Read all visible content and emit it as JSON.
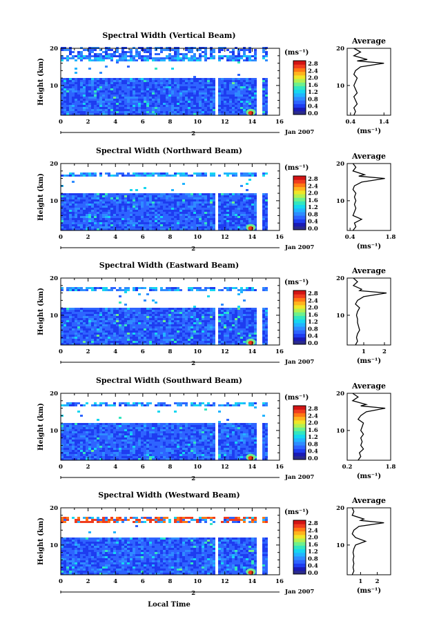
{
  "figure": {
    "x_axis_label": "Local Time",
    "height_label": "Height (km)",
    "colorbar_unit": "(ms⁻¹)",
    "avg_unit": "(ms⁻¹)",
    "avg_title": "Average",
    "date_label": "Jan 2007",
    "day_marker": "2",
    "colorscale": [
      "#2b2b8c",
      "#1a1ab4",
      "#1e3cf0",
      "#2e64ff",
      "#2f8cff",
      "#22b4ff",
      "#16d7f0",
      "#33e6c0",
      "#6ef08c",
      "#b4f050",
      "#f0e628",
      "#ffb41e",
      "#ff7814",
      "#f03c1e",
      "#d21414"
    ]
  },
  "chart_data": [
    {
      "type": "heatmap",
      "title": "Spectral Width (Vertical Beam)",
      "ylabel": "Height (km)",
      "xlim": [
        0,
        16
      ],
      "ylim": [
        2,
        20
      ],
      "x_ticks": [
        "0",
        "2",
        "4",
        "6",
        "8",
        "10",
        "12",
        "14",
        "16"
      ],
      "y_ticks": [
        "10",
        "20"
      ],
      "colorbar_ticks": [
        "0.0",
        "0.4",
        "0.8",
        "1.2",
        "1.6",
        "2.0",
        "2.4",
        "2.8"
      ],
      "colorbar_range": [
        0,
        2.8
      ],
      "average": {
        "title": "Average",
        "xlim": [
          0.3,
          1.6
        ],
        "x_ticks": [
          "0.4",
          "1.4"
        ],
        "y_ticks": [
          "10",
          "20"
        ],
        "profile": [
          [
            0.5,
            2
          ],
          [
            0.55,
            3
          ],
          [
            0.5,
            4
          ],
          [
            0.6,
            5
          ],
          [
            0.55,
            6
          ],
          [
            0.5,
            7
          ],
          [
            0.6,
            8
          ],
          [
            0.55,
            9
          ],
          [
            0.5,
            10
          ],
          [
            0.55,
            11
          ],
          [
            0.6,
            12
          ],
          [
            0.5,
            13
          ],
          [
            0.55,
            14
          ],
          [
            0.7,
            15
          ],
          [
            1.4,
            16
          ],
          [
            0.6,
            16.6
          ],
          [
            0.9,
            17
          ],
          [
            0.5,
            18
          ],
          [
            0.7,
            19
          ],
          [
            0.5,
            20
          ]
        ]
      }
    },
    {
      "type": "heatmap",
      "title": "Spectral Width (Northward Beam)",
      "ylabel": "Height (km)",
      "xlim": [
        0,
        16
      ],
      "ylim": [
        2,
        20
      ],
      "x_ticks": [
        "0",
        "2",
        "4",
        "6",
        "8",
        "10",
        "12",
        "14",
        "16"
      ],
      "y_ticks": [
        "10",
        "20"
      ],
      "colorbar_ticks": [
        "0.0",
        "0.4",
        "0.8",
        "1.2",
        "1.6",
        "2.0",
        "2.4",
        "2.8"
      ],
      "colorbar_range": [
        0,
        2.8
      ],
      "average": {
        "title": "Average",
        "xlim": [
          0.3,
          1.8
        ],
        "x_ticks": [
          "0.4",
          "1.8"
        ],
        "y_ticks": [
          "10",
          "20"
        ],
        "profile": [
          [
            0.5,
            2
          ],
          [
            0.6,
            3
          ],
          [
            0.55,
            4
          ],
          [
            0.8,
            5
          ],
          [
            0.5,
            6
          ],
          [
            0.55,
            7
          ],
          [
            0.6,
            8
          ],
          [
            0.55,
            9
          ],
          [
            0.6,
            10
          ],
          [
            0.55,
            11
          ],
          [
            0.6,
            12
          ],
          [
            0.5,
            13
          ],
          [
            0.55,
            14
          ],
          [
            0.8,
            15
          ],
          [
            1.6,
            16
          ],
          [
            0.7,
            16.6
          ],
          [
            0.9,
            17
          ],
          [
            0.5,
            18
          ],
          [
            0.6,
            19
          ],
          [
            0.5,
            20
          ]
        ]
      }
    },
    {
      "type": "heatmap",
      "title": "Spectral Width (Eastward Beam)",
      "ylabel": "Height (km)",
      "xlim": [
        0,
        16
      ],
      "ylim": [
        2,
        20
      ],
      "x_ticks": [
        "0",
        "2",
        "4",
        "6",
        "8",
        "10",
        "12",
        "14",
        "16"
      ],
      "y_ticks": [
        "10",
        "20"
      ],
      "colorbar_ticks": [
        "0.0",
        "0.4",
        "0.8",
        "1.2",
        "1.6",
        "2.0",
        "2.4",
        "2.8"
      ],
      "colorbar_range": [
        0,
        2.8
      ],
      "average": {
        "title": "Average",
        "xlim": [
          0.2,
          2.3
        ],
        "x_ticks": [
          "1",
          "2"
        ],
        "y_ticks": [
          "10",
          "20"
        ],
        "profile": [
          [
            0.6,
            2
          ],
          [
            0.7,
            3
          ],
          [
            0.65,
            4
          ],
          [
            0.7,
            5
          ],
          [
            0.8,
            6
          ],
          [
            0.75,
            7
          ],
          [
            0.7,
            8
          ],
          [
            0.7,
            9
          ],
          [
            0.65,
            10
          ],
          [
            0.7,
            11
          ],
          [
            0.8,
            12
          ],
          [
            0.6,
            13
          ],
          [
            0.7,
            14
          ],
          [
            1.0,
            15
          ],
          [
            2.1,
            16
          ],
          [
            0.8,
            16.6
          ],
          [
            0.9,
            17
          ],
          [
            0.5,
            18
          ],
          [
            0.7,
            19
          ],
          [
            0.5,
            20
          ]
        ]
      }
    },
    {
      "type": "heatmap",
      "title": "Spectral Width (Southward Beam)",
      "ylabel": "Height (km)",
      "xlim": [
        0,
        16
      ],
      "ylim": [
        2,
        20
      ],
      "x_ticks": [
        "0",
        "2",
        "4",
        "6",
        "8",
        "10",
        "12",
        "14",
        "16"
      ],
      "y_ticks": [
        "10",
        "20"
      ],
      "colorbar_ticks": [
        "0.0",
        "0.4",
        "0.8",
        "1.2",
        "1.6",
        "2.0",
        "2.4",
        "2.8"
      ],
      "colorbar_range": [
        0,
        2.8
      ],
      "average": {
        "title": "Average",
        "xlim": [
          0.2,
          1.8
        ],
        "x_ticks": [
          "0.2",
          "1.8"
        ],
        "y_ticks": [
          "10",
          "20"
        ],
        "profile": [
          [
            0.6,
            2
          ],
          [
            0.7,
            3
          ],
          [
            0.65,
            4
          ],
          [
            0.8,
            5
          ],
          [
            0.7,
            6
          ],
          [
            0.75,
            7
          ],
          [
            0.7,
            8
          ],
          [
            0.8,
            9
          ],
          [
            0.7,
            10
          ],
          [
            0.75,
            11
          ],
          [
            0.8,
            12
          ],
          [
            0.6,
            13
          ],
          [
            0.7,
            14
          ],
          [
            0.9,
            15
          ],
          [
            1.6,
            16
          ],
          [
            0.7,
            16.6
          ],
          [
            0.9,
            17
          ],
          [
            0.4,
            18
          ],
          [
            0.6,
            19
          ],
          [
            0.4,
            20
          ]
        ]
      }
    },
    {
      "type": "heatmap",
      "title": "Spectral Width (Westward Beam)",
      "ylabel": "Height (km)",
      "xlim": [
        0,
        16
      ],
      "ylim": [
        2,
        20
      ],
      "x_ticks": [
        "0",
        "2",
        "4",
        "6",
        "8",
        "10",
        "12",
        "14",
        "16"
      ],
      "y_ticks": [
        "10",
        "20"
      ],
      "colorbar_ticks": [
        "0.0",
        "0.4",
        "0.8",
        "1.2",
        "1.6",
        "2.0",
        "2.4",
        "2.8"
      ],
      "colorbar_range": [
        0,
        2.8
      ],
      "average": {
        "title": "Average",
        "xlim": [
          0.2,
          2.8
        ],
        "x_ticks": [
          "1",
          "2"
        ],
        "y_ticks": [
          "10",
          "20"
        ],
        "profile": [
          [
            0.5,
            2
          ],
          [
            0.6,
            3
          ],
          [
            0.55,
            4
          ],
          [
            0.6,
            5
          ],
          [
            0.55,
            6
          ],
          [
            0.6,
            7
          ],
          [
            0.55,
            8
          ],
          [
            0.6,
            9
          ],
          [
            0.7,
            10
          ],
          [
            1.3,
            11
          ],
          [
            0.7,
            12
          ],
          [
            0.5,
            13
          ],
          [
            0.6,
            14
          ],
          [
            0.9,
            15
          ],
          [
            2.4,
            16
          ],
          [
            1.0,
            16.6
          ],
          [
            1.2,
            17
          ],
          [
            0.5,
            18
          ],
          [
            0.6,
            19
          ],
          [
            0.5,
            20
          ]
        ]
      }
    }
  ]
}
